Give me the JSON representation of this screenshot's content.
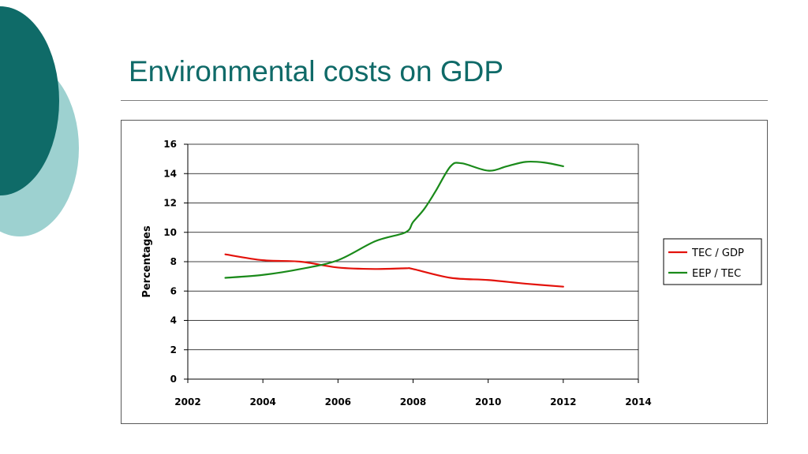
{
  "slide": {
    "title": "Environmental costs on GDP",
    "colors": {
      "title": "#0f6a68",
      "deco_dark": "#0f6b68",
      "deco_light": "#9dd1d0"
    }
  },
  "chart_data": {
    "type": "line",
    "title": "",
    "xlabel": "",
    "ylabel": "Percentages",
    "xlim": [
      2002,
      2014
    ],
    "ylim": [
      0,
      16
    ],
    "xticks": [
      2002,
      2004,
      2006,
      2008,
      2010,
      2012,
      2014
    ],
    "yticks": [
      0,
      2,
      4,
      6,
      8,
      10,
      12,
      14,
      16
    ],
    "grid": "horizontal",
    "legend_position": "right",
    "series": [
      {
        "name": "TEC / GDP",
        "color": "#e3120b",
        "x": [
          2003,
          2004,
          2005,
          2006,
          2007,
          2007.8,
          2008,
          2009,
          2010,
          2011,
          2012
        ],
        "y": [
          8.5,
          8.1,
          8.0,
          7.6,
          7.5,
          7.55,
          7.5,
          6.9,
          6.75,
          6.5,
          6.3
        ]
      },
      {
        "name": "EEP / TEC",
        "color": "#1a8a1a",
        "x": [
          2003,
          2004,
          2005,
          2006,
          2007,
          2007.8,
          2008,
          2008.3,
          2008.6,
          2009,
          2009.3,
          2010,
          2010.5,
          2011,
          2011.5,
          2012
        ],
        "y": [
          6.9,
          7.1,
          7.5,
          8.1,
          9.4,
          10.0,
          10.7,
          11.6,
          12.8,
          14.5,
          14.7,
          14.2,
          14.5,
          14.8,
          14.75,
          14.5
        ]
      }
    ]
  }
}
